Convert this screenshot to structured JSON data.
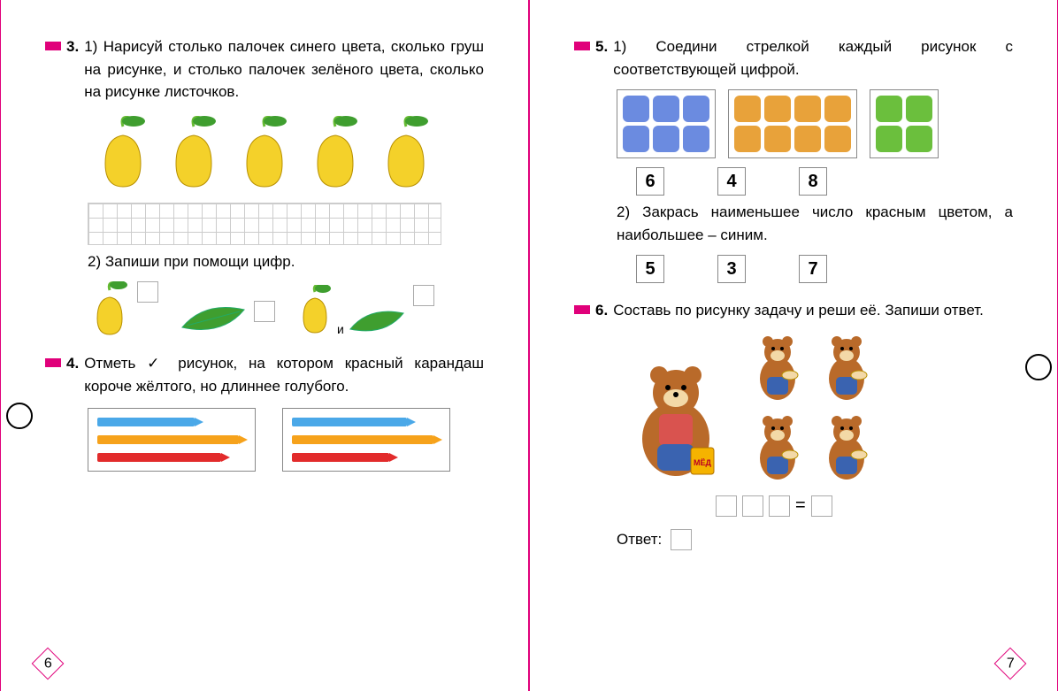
{
  "left": {
    "t3": {
      "num": "3.",
      "part1_label": "1)",
      "part1_text": "Нарисуй столько палочек синего цвета, сколько груш на рисунке, и столько палочек зелёного цвета, сколько на рисунке листочков.",
      "pear_count": 5,
      "pear_color": "#f4d12a",
      "leaf_color": "#3f9e2f",
      "part2_label": "2)",
      "part2_text": "Запиши при помощи цифр.",
      "joiner": "и"
    },
    "t4": {
      "num": "4.",
      "text": "Отметь ✓ рисунок, на котором красный карандаш короче жёлтого, но длиннее голубого.",
      "sets": [
        {
          "pencils": [
            {
              "color": "#4aa8e8",
              "len": 110
            },
            {
              "color": "#f6a21b",
              "len": 160
            },
            {
              "color": "#e22b2b",
              "len": 140
            }
          ]
        },
        {
          "pencils": [
            {
              "color": "#4aa8e8",
              "len": 130
            },
            {
              "color": "#f6a21b",
              "len": 160
            },
            {
              "color": "#e22b2b",
              "len": 110
            }
          ]
        }
      ]
    },
    "pagenum": "6"
  },
  "right": {
    "t5": {
      "num": "5.",
      "part1_label": "1)",
      "part1_text": "Соедини стрелкой каждый рисунок с соответствующей цифрой.",
      "groups": [
        {
          "color": "#6b8be0",
          "rows": 2,
          "cols": 3
        },
        {
          "color": "#e8a23a",
          "rows": 2,
          "cols": 4
        },
        {
          "color": "#6bbf3d",
          "rows": 2,
          "cols": 2
        }
      ],
      "nums": [
        "6",
        "4",
        "8"
      ],
      "part2_label": "2)",
      "part2_text": "Закрась наименьшее число красным цветом, а наибольшее – синим.",
      "nums2": [
        "5",
        "3",
        "7"
      ]
    },
    "t6": {
      "num": "6.",
      "text": "Составь по рисунку задачу и реши её. Запиши ответ.",
      "big_bear_color": "#b96a2a",
      "small_bear_color": "#b96a2a",
      "small_bear_count": 4,
      "eq_sign": "=",
      "answer_label": "Ответ:"
    },
    "pagenum": "7"
  },
  "accent": "#e0007a"
}
